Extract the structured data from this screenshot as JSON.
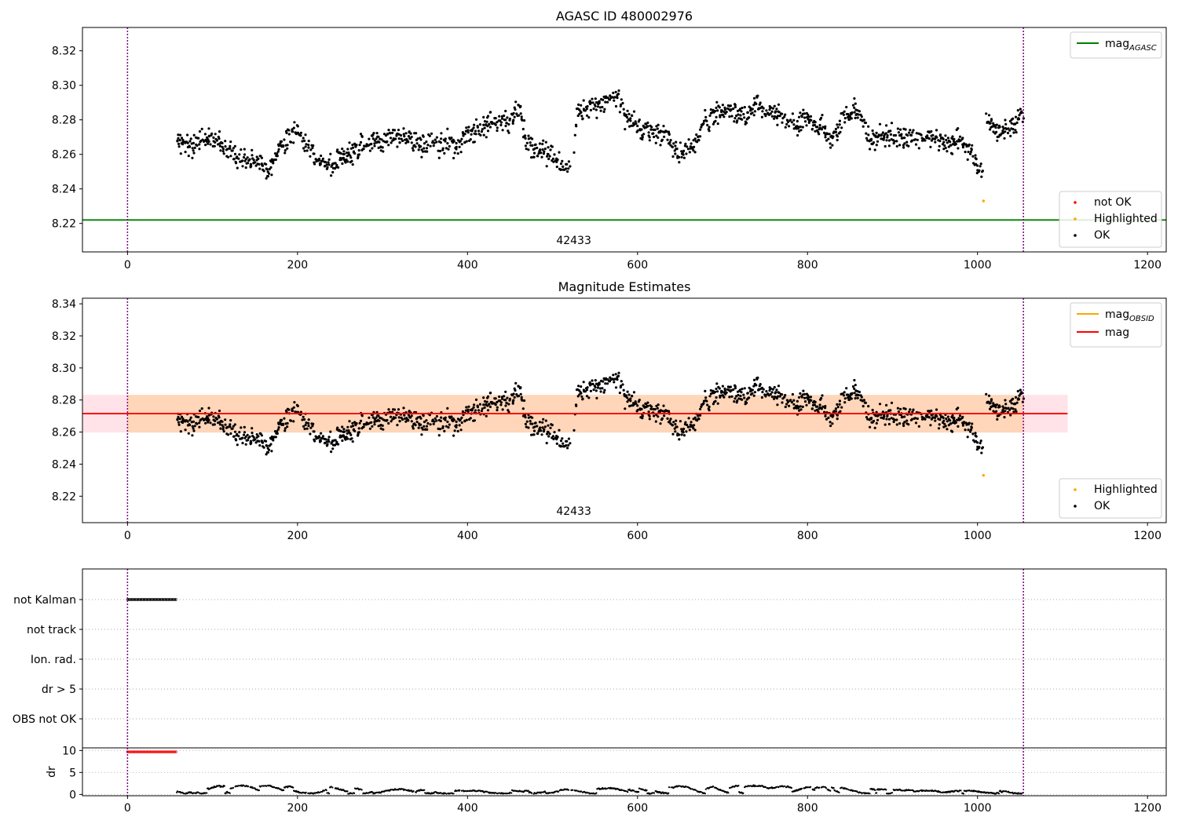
{
  "chart_data": [
    {
      "type": "scatter",
      "title": "AGASC ID 480002976",
      "xlabel": "",
      "ylabel": "",
      "xlim": [
        -53,
        1222
      ],
      "ylim": [
        8.2035,
        8.3335
      ],
      "x_ticks": [
        0,
        200,
        400,
        600,
        800,
        1000,
        1200
      ],
      "y_ticks": [
        8.22,
        8.24,
        8.26,
        8.28,
        8.3,
        8.32
      ],
      "grid": false,
      "obsid_label": "42433",
      "obsid_label_x": 525,
      "vlines": [
        0,
        1054
      ],
      "hlines": [
        {
          "name": "mag",
          "sub": "AGASC",
          "value": 8.222,
          "color": "#008000"
        }
      ],
      "legend_lines": {
        "position": "top-right",
        "entries": [
          {
            "name": "mag",
            "sub": "AGASC",
            "color": "#008000"
          }
        ]
      },
      "legend_points": {
        "position": "bottom-right",
        "entries": [
          {
            "name": "not OK",
            "color": "#ff0000"
          },
          {
            "name": "Highlighted",
            "color": "#ffa500"
          },
          {
            "name": "OK",
            "color": "#000000"
          }
        ]
      },
      "series": [
        {
          "name": "OK",
          "color": "#000000",
          "segments": [
            {
              "x_start": 58,
              "x_end": 520,
              "anchors": [
                [
                  58,
                  8.268
                ],
                [
                  75,
                  8.265
                ],
                [
                  90,
                  8.27
                ],
                [
                  105,
                  8.268
                ],
                [
                  120,
                  8.262
                ],
                [
                  135,
                  8.256
                ],
                [
                  150,
                  8.256
                ],
                [
                  165,
                  8.251
                ],
                [
                  180,
                  8.265
                ],
                [
                  195,
                  8.273
                ],
                [
                  210,
                  8.268
                ],
                [
                  225,
                  8.256
                ],
                [
                  240,
                  8.253
                ],
                [
                  255,
                  8.26
                ],
                [
                  270,
                  8.262
                ],
                [
                  285,
                  8.268
                ],
                [
                  300,
                  8.267
                ],
                [
                  315,
                  8.27
                ],
                [
                  330,
                  8.27
                ],
                [
                  345,
                  8.265
                ],
                [
                  360,
                  8.266
                ],
                [
                  375,
                  8.266
                ],
                [
                  390,
                  8.265
                ],
                [
                  400,
                  8.272
                ],
                [
                  415,
                  8.275
                ],
                [
                  430,
                  8.278
                ],
                [
                  445,
                  8.28
                ],
                [
                  460,
                  8.286
                ],
                [
                  470,
                  8.268
                ],
                [
                  480,
                  8.262
                ],
                [
                  495,
                  8.262
                ],
                [
                  505,
                  8.257
                ],
                [
                  520,
                  8.252
                ]
              ]
            },
            {
              "x_start": 525,
              "x_end": 1006,
              "anchors": [
                [
                  525,
                  8.262
                ],
                [
                  530,
                  8.285
                ],
                [
                  545,
                  8.288
                ],
                [
                  560,
                  8.29
                ],
                [
                  575,
                  8.292
                ],
                [
                  590,
                  8.28
                ],
                [
                  605,
                  8.275
                ],
                [
                  620,
                  8.273
                ],
                [
                  635,
                  8.27
                ],
                [
                  650,
                  8.262
                ],
                [
                  665,
                  8.265
                ],
                [
                  680,
                  8.28
                ],
                [
                  695,
                  8.283
                ],
                [
                  710,
                  8.285
                ],
                [
                  725,
                  8.283
                ],
                [
                  740,
                  8.288
                ],
                [
                  755,
                  8.285
                ],
                [
                  770,
                  8.282
                ],
                [
                  785,
                  8.276
                ],
                [
                  800,
                  8.28
                ],
                [
                  815,
                  8.275
                ],
                [
                  830,
                  8.27
                ],
                [
                  845,
                  8.282
                ],
                [
                  860,
                  8.285
                ],
                [
                  875,
                  8.268
                ],
                [
                  890,
                  8.272
                ],
                [
                  905,
                  8.27
                ],
                [
                  920,
                  8.27
                ],
                [
                  935,
                  8.269
                ],
                [
                  950,
                  8.27
                ],
                [
                  965,
                  8.266
                ],
                [
                  980,
                  8.268
                ],
                [
                  992,
                  8.262
                ],
                [
                  1006,
                  8.25
                ]
              ]
            },
            {
              "x_start": 1010,
              "x_end": 1054,
              "anchors": [
                [
                  1010,
                  8.278
                ],
                [
                  1025,
                  8.273
                ],
                [
                  1040,
                  8.276
                ],
                [
                  1054,
                  8.282
                ]
              ]
            }
          ]
        },
        {
          "name": "Highlighted",
          "color": "#ffa500",
          "points": [
            [
              1007,
              8.233
            ]
          ]
        }
      ]
    },
    {
      "type": "scatter",
      "title": "Magnitude Estimates",
      "xlabel": "",
      "ylabel": "",
      "xlim": [
        -53,
        1222
      ],
      "ylim": [
        8.2035,
        8.3435
      ],
      "x_ticks": [
        0,
        200,
        400,
        600,
        800,
        1000,
        1200
      ],
      "y_ticks": [
        8.22,
        8.24,
        8.26,
        8.28,
        8.3,
        8.32,
        8.34
      ],
      "grid": false,
      "obsid_label": "42433",
      "obsid_label_x": 525,
      "vlines": [
        0,
        1054
      ],
      "bands": [
        {
          "x_start": -53,
          "x_end": 1106,
          "y_low": 8.2597,
          "y_high": 8.2832,
          "color": "#ffc0cb",
          "opacity": 0.45
        },
        {
          "x_start": 0,
          "x_end": 1054,
          "y_low": 8.2597,
          "y_high": 8.2832,
          "color": "#ffa500",
          "opacity": 0.2
        }
      ],
      "hlines": [
        {
          "name": "mag",
          "sub": "",
          "value": 8.2715,
          "color": "#ff0000",
          "x_start": -53,
          "x_end": 1106
        }
      ],
      "legend_lines": {
        "position": "top-right",
        "entries": [
          {
            "name": "mag",
            "sub": "OBSID",
            "color": "#ffa500"
          },
          {
            "name": "mag",
            "sub": "",
            "color": "#ff0000"
          }
        ]
      },
      "legend_points": {
        "position": "bottom-right",
        "entries": [
          {
            "name": "Highlighted",
            "color": "#ffa500"
          },
          {
            "name": "OK",
            "color": "#000000"
          }
        ]
      },
      "same_points_as_panel": 0
    },
    {
      "type": "scatter",
      "title": "",
      "xlim": [
        -53,
        1222
      ],
      "x_ticks": [
        0,
        200,
        400,
        600,
        800,
        1000,
        1200
      ],
      "vlines": [
        0,
        1054
      ],
      "flags": {
        "categories": [
          "not Kalman",
          "not track",
          "Ion. rad.",
          "dr > 5",
          "OBS not OK"
        ],
        "series": [
          {
            "name": "not Kalman",
            "x_start": 0,
            "x_end": 57,
            "color": "#000000"
          }
        ]
      },
      "dr": {
        "ylabel": "dr",
        "ylim": [
          -0.3,
          10.6
        ],
        "y_ticks": [
          0,
          5,
          10
        ],
        "flagged": {
          "x_start": 0,
          "x_end": 57,
          "value": 9.7,
          "color": "#ff0000"
        },
        "ok": {
          "x_start": 58,
          "x_end": 1054,
          "min": 0.1,
          "max": 2.5,
          "color": "#000000"
        }
      }
    }
  ]
}
